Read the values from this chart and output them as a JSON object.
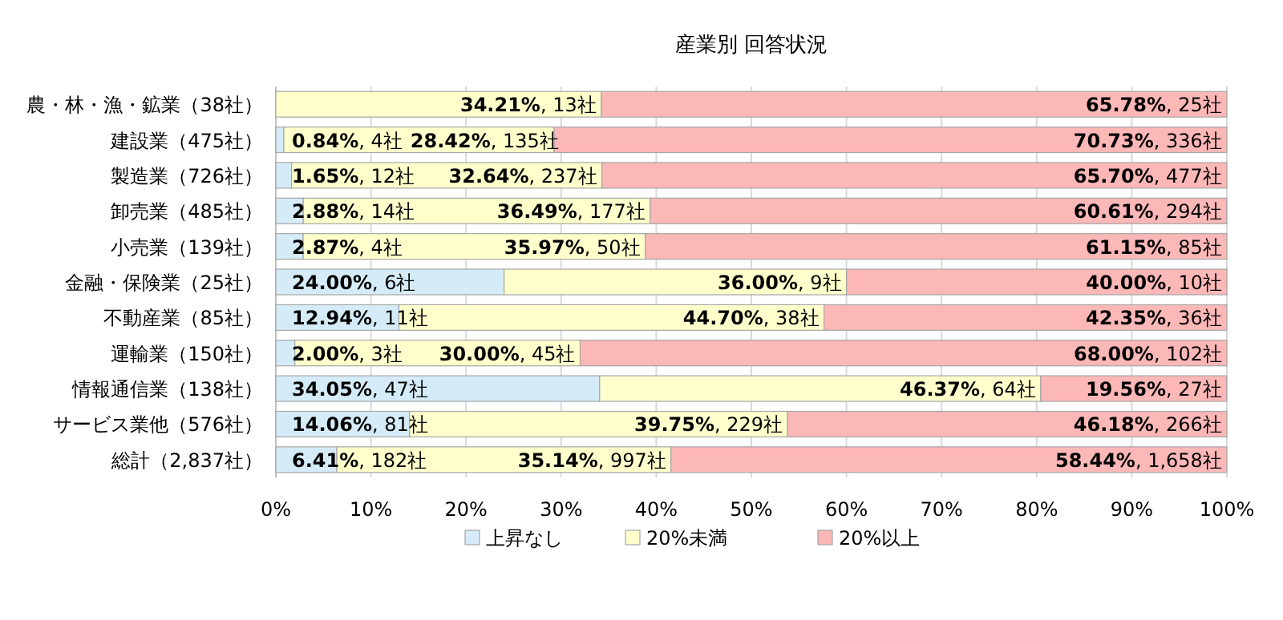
{
  "chart_data": {
    "type": "bar",
    "orientation": "horizontal",
    "stacked": true,
    "title": "産業別 回答状況",
    "categories": [
      "農・林・漁・鉱業（38社）",
      "建設業（475社）",
      "製造業（726社）",
      "卸売業（485社）",
      "小売業（139社）",
      "金融・保険業（25社）",
      "不動産業（85社）",
      "運輸業（150社）",
      "情報通信業（138社）",
      "サービス業他（576社）",
      "総計（2,837社）"
    ],
    "series": [
      {
        "name": "上昇なし",
        "color": "#d5ecf8",
        "values": [
          0,
          0.84,
          1.65,
          2.88,
          2.87,
          24.0,
          12.94,
          2.0,
          34.05,
          14.06,
          6.41
        ],
        "value_labels": [
          null,
          "**0.84%**, 4社",
          "**1.65%**, 12社",
          "**2.88%**, 14社",
          "**2.87%**, 4社",
          "**24.00%**, 6社",
          "**12.94%**, 11社",
          "**2.00%**, 3社",
          "**34.05%**, 47社",
          "**14.06%**, 81社",
          "**6.41%**, 182社"
        ]
      },
      {
        "name": "20%未満",
        "color": "#ffffcc",
        "values": [
          34.21,
          28.42,
          32.64,
          36.49,
          35.97,
          36.0,
          44.7,
          30.0,
          46.37,
          39.75,
          35.14
        ],
        "value_labels": [
          "**34.21%**, 13社",
          "**28.42%**, 135社",
          "**32.64%**, 237社",
          "**36.49%**, 177社",
          "**35.97%**, 50社",
          "**36.00%**, 9社",
          "**44.70%**, 38社",
          "**30.00%**, 45社",
          "**46.37%**, 64社",
          "**39.75%**, 229社",
          "**35.14%**, 997社"
        ]
      },
      {
        "name": "20%以上",
        "color": "#fcb7b7",
        "values": [
          65.78,
          70.73,
          65.7,
          60.61,
          61.15,
          40.0,
          42.35,
          68.0,
          19.56,
          46.18,
          58.44
        ],
        "value_labels": [
          "**65.78%**, 25社",
          "**70.73%**, 336社",
          "**65.70%**, 477社",
          "**60.61%**, 294社",
          "**61.15%**, 85社",
          "**40.00%**, 10社",
          "**42.35%**, 36社",
          "**68.00%**, 102社",
          "**19.56%**, 27社",
          "**46.18%**, 266社",
          "**58.44%**, 1,658社"
        ]
      }
    ],
    "xlim": [
      0,
      100
    ],
    "xticks": [
      {
        "value": 0,
        "label": "0%"
      },
      {
        "value": 10,
        "label": "10%"
      },
      {
        "value": 20,
        "label": "20%"
      },
      {
        "value": 30,
        "label": "30%"
      },
      {
        "value": 40,
        "label": "40%"
      },
      {
        "value": 50,
        "label": "50%"
      },
      {
        "value": 60,
        "label": "60%"
      },
      {
        "value": 70,
        "label": "70%"
      },
      {
        "value": 80,
        "label": "80%"
      },
      {
        "value": 90,
        "label": "90%"
      },
      {
        "value": 100,
        "label": "100%"
      }
    ],
    "grid": "x",
    "legend": "bottom"
  }
}
